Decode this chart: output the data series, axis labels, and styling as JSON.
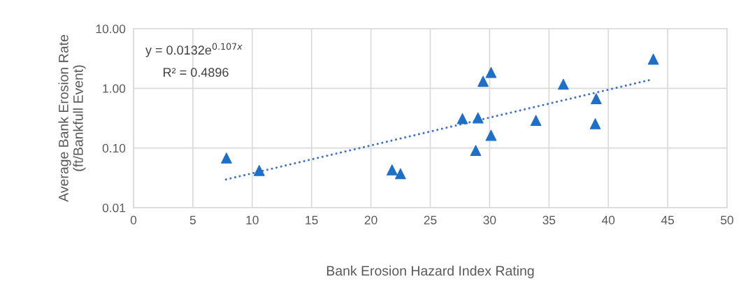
{
  "chart_data": {
    "type": "scatter",
    "xlabel": "Bank Erosion Hazard Index Rating",
    "ylabel": "Average Bank Erosion Rate\n(ft/Bankfull Event)",
    "series": [
      {
        "color": "#1f6fc5",
        "marker": "triangle",
        "x": [
          7.83,
          10.59,
          21.78,
          22.49,
          27.71,
          29.02,
          29.45,
          30.12,
          30.12,
          28.83,
          33.9,
          36.21,
          38.98,
          38.9,
          43.79
        ],
        "values": [
          0.068,
          0.042,
          0.043,
          0.037,
          0.31,
          0.32,
          1.31,
          1.84,
          0.163,
          0.091,
          0.29,
          1.17,
          0.67,
          0.255,
          3.08
        ]
      },
      {
        "type": "line",
        "color": "#4472c4",
        "line_style": "dotted",
        "marker": "none",
        "x": [
          7.79,
          43.42
        ],
        "values": [
          0.0297,
          1.37
        ]
      }
    ],
    "annotations": [
      "y = 0.0132e$^{0.107x}$",
      "R² = 0.4896"
    ],
    "log": "y",
    "xlim": [
      0,
      50
    ],
    "xticks": [
      0,
      5,
      10,
      15,
      20,
      25,
      30,
      35,
      40,
      45,
      50
    ],
    "ylim": [
      0.01,
      10
    ],
    "yticks": [
      {
        "value": 0.01,
        "label": "0.01"
      },
      {
        "value": 0.1,
        "label": "0.10"
      },
      {
        "value": 1,
        "label": "1.00"
      },
      {
        "value": 10,
        "label": "10.00"
      }
    ],
    "grid": true,
    "legend": false
  }
}
